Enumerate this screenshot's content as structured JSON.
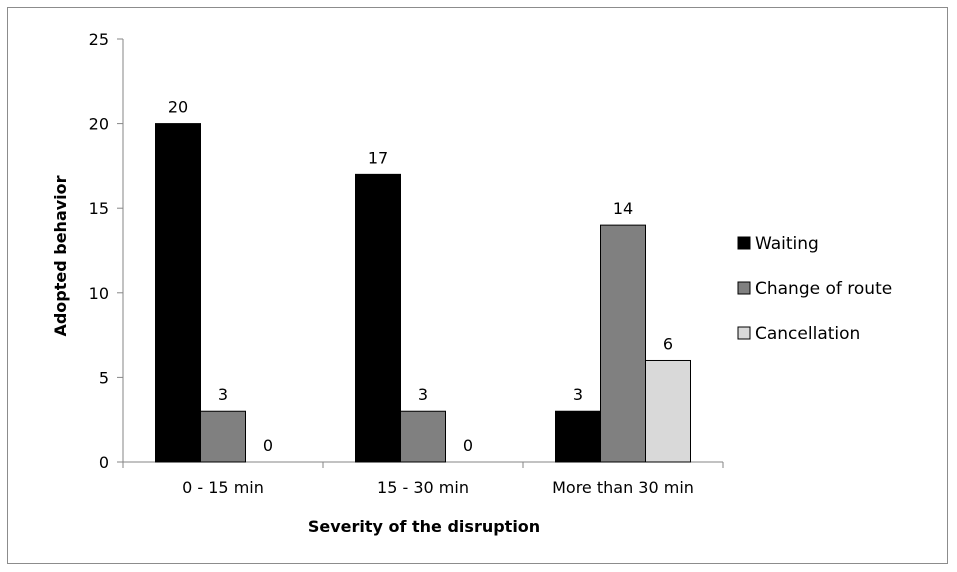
{
  "chart_data": {
    "type": "bar",
    "title": "",
    "xlabel": "Severity of the disruption",
    "ylabel": "Adopted behavior",
    "categories": [
      "0 - 15 min",
      "15 - 30 min",
      "More than 30 min"
    ],
    "series": [
      {
        "name": "Waiting",
        "values": [
          20,
          17,
          3
        ],
        "color": "#000000"
      },
      {
        "name": "Change of route",
        "values": [
          3,
          3,
          14
        ],
        "color": "#808080"
      },
      {
        "name": "Cancellation",
        "values": [
          0,
          0,
          6
        ],
        "color": "#d9d9d9"
      }
    ],
    "ylim": [
      0,
      25
    ],
    "yticks": [
      0,
      5,
      10,
      15,
      20,
      25
    ],
    "grid": false,
    "legend_position": "right",
    "data_labels": true
  }
}
